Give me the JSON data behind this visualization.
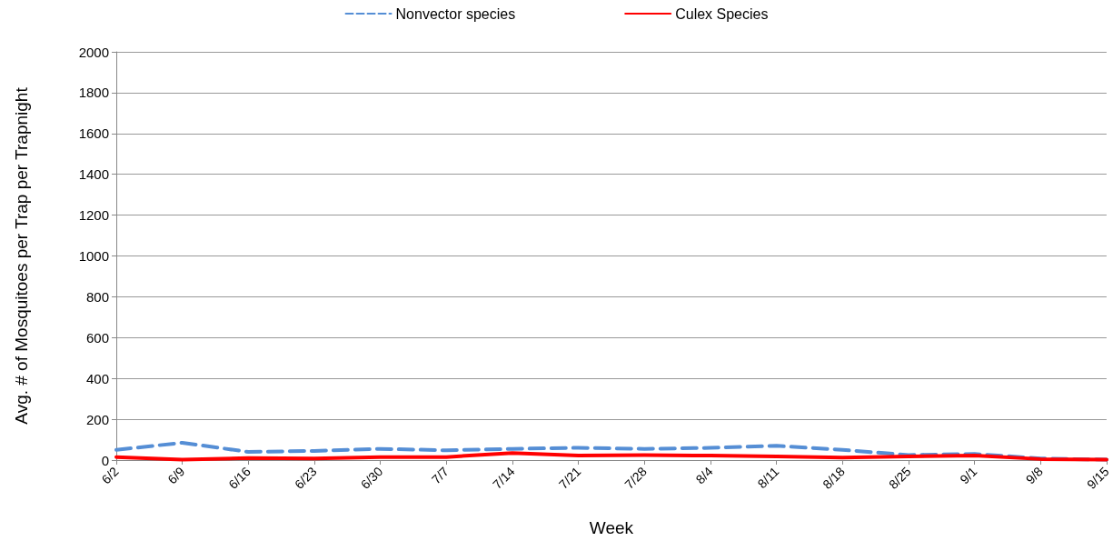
{
  "chart_data": {
    "type": "line",
    "xlabel": "Week",
    "ylabel": "Avg. # of Mosquitoes per Trap per Trapnight",
    "categories": [
      "6/2",
      "6/9",
      "6/16",
      "6/23",
      "6/30",
      "7/7",
      "7/14",
      "7/21",
      "7/28",
      "8/4",
      "8/11",
      "8/18",
      "8/25",
      "9/1",
      "9/8",
      "9/15"
    ],
    "series": [
      {
        "name": "Nonvector species",
        "color": "#558ed5",
        "line_style": "dashed",
        "values": [
          50,
          85,
          40,
          45,
          55,
          48,
          55,
          60,
          55,
          60,
          70,
          50,
          25,
          30,
          8,
          2
        ]
      },
      {
        "name": "Culex Species",
        "color": "#ff0000",
        "line_style": "solid",
        "values": [
          15,
          2,
          10,
          8,
          15,
          15,
          35,
          22,
          25,
          22,
          18,
          12,
          18,
          22,
          5,
          2
        ]
      }
    ],
    "ylim": [
      0,
      2000
    ],
    "yticks": [
      0,
      200,
      400,
      600,
      800,
      1000,
      1200,
      1400,
      1600,
      1800,
      2000
    ],
    "grid": "y",
    "legend": "top",
    "marker": "none"
  }
}
